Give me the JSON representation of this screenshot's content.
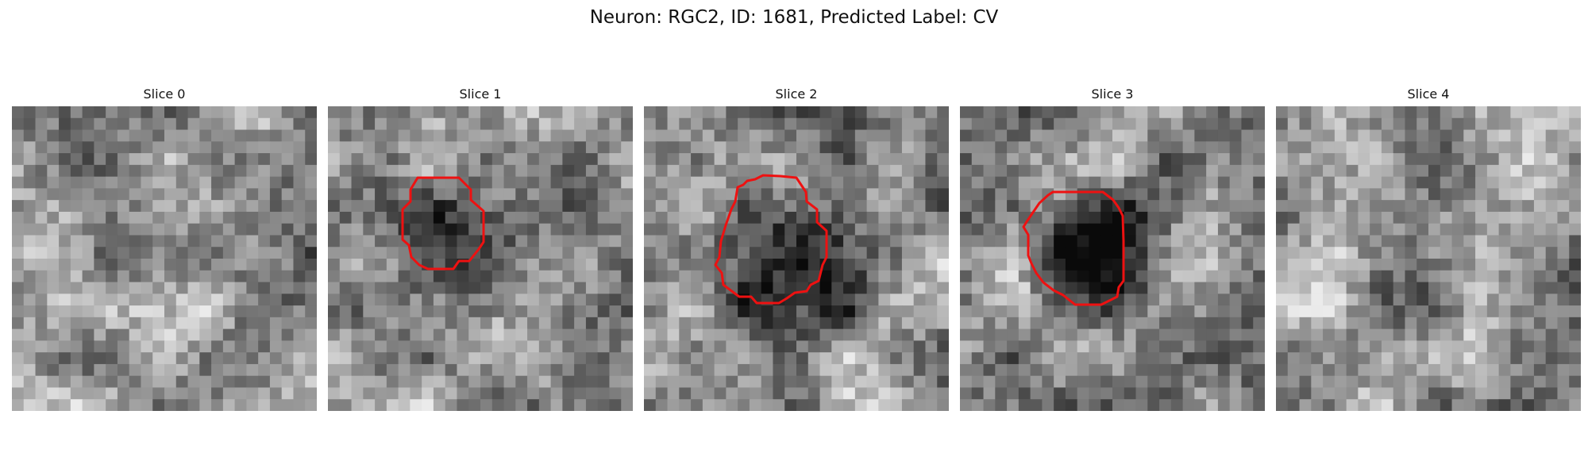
{
  "figure": {
    "title": "Neuron: RGC2, ID: 1681, Predicted Label: CV"
  },
  "contour_color": "#ee1111",
  "panels": [
    {
      "label": "Slice 0",
      "has_contour": false,
      "dark_blob": null,
      "seed": 11
    },
    {
      "label": "Slice 1",
      "has_contour": true,
      "dark_blob": [
        12,
        10,
        5.5
      ],
      "seed": 23
    },
    {
      "label": "Slice 2",
      "has_contour": true,
      "dark_blob": [
        13,
        12,
        7.0
      ],
      "seed": 37
    },
    {
      "label": "Slice 3",
      "has_contour": true,
      "dark_blob": [
        12,
        11,
        5.5
      ],
      "seed": 53
    },
    {
      "label": "Slice 4",
      "has_contour": false,
      "dark_blob": null,
      "seed": 71
    }
  ]
}
